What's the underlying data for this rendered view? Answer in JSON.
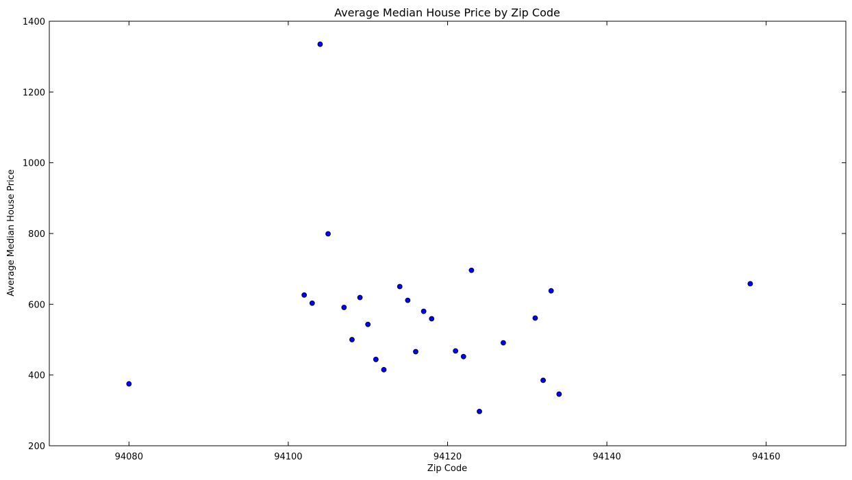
{
  "chart_data": {
    "type": "scatter",
    "title": "Average Median House Price by Zip Code",
    "xlabel": "Zip Code",
    "ylabel": "Average Median House Price",
    "xlim": [
      94070,
      94170
    ],
    "ylim": [
      200,
      1400
    ],
    "xticks": [
      94080,
      94100,
      94120,
      94140,
      94160
    ],
    "yticks": [
      200,
      400,
      600,
      800,
      1000,
      1200,
      1400
    ],
    "grid": false,
    "marker_color": "#0000ff",
    "marker_edge_color": "#000000",
    "points": [
      {
        "x": 94080,
        "y": 375
      },
      {
        "x": 94102,
        "y": 626
      },
      {
        "x": 94103,
        "y": 603
      },
      {
        "x": 94104,
        "y": 1335
      },
      {
        "x": 94105,
        "y": 799
      },
      {
        "x": 94107,
        "y": 591
      },
      {
        "x": 94108,
        "y": 500
      },
      {
        "x": 94109,
        "y": 619
      },
      {
        "x": 94110,
        "y": 543
      },
      {
        "x": 94111,
        "y": 444
      },
      {
        "x": 94112,
        "y": 415
      },
      {
        "x": 94114,
        "y": 650
      },
      {
        "x": 94115,
        "y": 611
      },
      {
        "x": 94116,
        "y": 466
      },
      {
        "x": 94117,
        "y": 580
      },
      {
        "x": 94118,
        "y": 559
      },
      {
        "x": 94121,
        "y": 468
      },
      {
        "x": 94122,
        "y": 452
      },
      {
        "x": 94123,
        "y": 696
      },
      {
        "x": 94124,
        "y": 297
      },
      {
        "x": 94127,
        "y": 491
      },
      {
        "x": 94131,
        "y": 561
      },
      {
        "x": 94132,
        "y": 385
      },
      {
        "x": 94133,
        "y": 638
      },
      {
        "x": 94134,
        "y": 346
      },
      {
        "x": 94158,
        "y": 658
      }
    ]
  }
}
